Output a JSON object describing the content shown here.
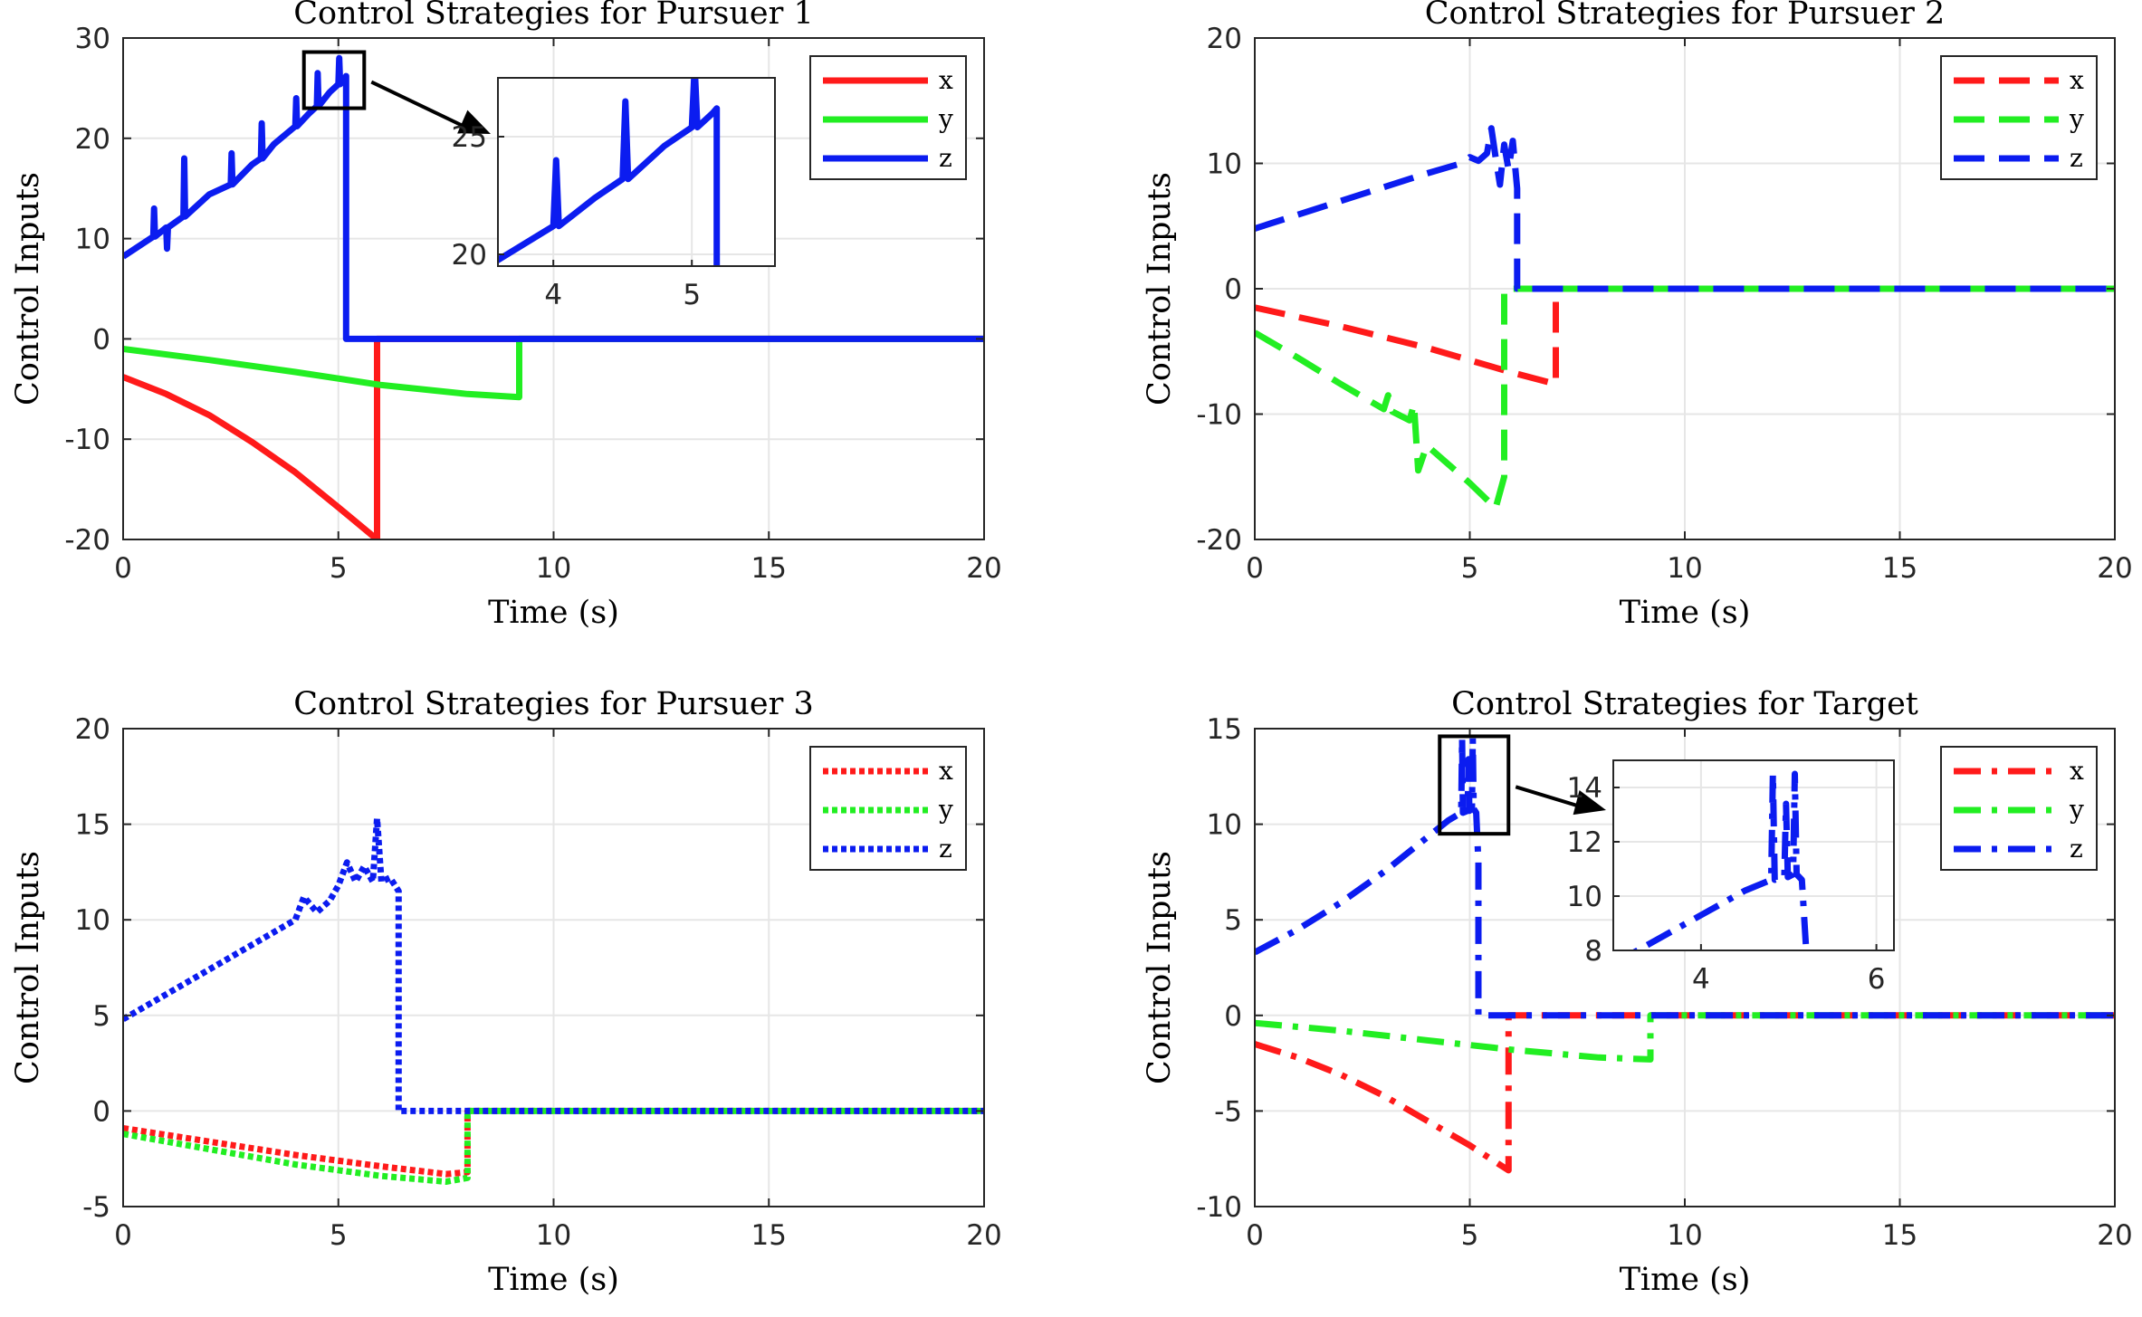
{
  "chart_data": [
    {
      "type": "line",
      "title": "Control Strategies for Pursuer 1",
      "xlabel": "Time (s)",
      "ylabel": "Control Inputs",
      "xlim": [
        0,
        20
      ],
      "ylim": [
        -20,
        30
      ],
      "xticks": [
        0,
        5,
        10,
        15,
        20
      ],
      "yticks": [
        -20,
        -10,
        0,
        10,
        20,
        30
      ],
      "grid": true,
      "line_style": "solid",
      "legend_position": "top-right",
      "series": [
        {
          "name": "x",
          "color": "#ff1a1a",
          "x": [
            0,
            1,
            2,
            3,
            4,
            5,
            5.9,
            5.9,
            20
          ],
          "y": [
            -3.8,
            -5.5,
            -7.6,
            -10.3,
            -13.3,
            -16.8,
            -20,
            0,
            0
          ]
        },
        {
          "name": "y",
          "color": "#22ee22",
          "x": [
            0,
            2,
            4,
            6,
            8,
            9.2,
            9.2,
            20
          ],
          "y": [
            -1,
            -2.1,
            -3.3,
            -4.6,
            -5.5,
            -5.8,
            0,
            0
          ]
        },
        {
          "name": "z",
          "color": "#0b1cf0",
          "x": [
            0,
            0.7,
            0.72,
            0.74,
            1.0,
            1.02,
            1.04,
            1.4,
            1.42,
            1.44,
            2.0,
            2.5,
            2.52,
            2.54,
            3.0,
            3.2,
            3.22,
            3.24,
            3.5,
            4.0,
            4.02,
            4.04,
            4.3,
            4.5,
            4.52,
            4.54,
            4.8,
            5.0,
            5.02,
            5.04,
            5.15,
            5.18,
            5.18,
            20
          ],
          "y": [
            8.2,
            10.2,
            13,
            10.2,
            11.1,
            9,
            11.1,
            12.2,
            18,
            12.2,
            14.4,
            15.4,
            18.5,
            15.4,
            17.4,
            18,
            21.5,
            18,
            19.4,
            21.2,
            24,
            21.2,
            22.4,
            23.2,
            26.5,
            23.2,
            24.6,
            25.4,
            28,
            25.4,
            26,
            26.2,
            0,
            0
          ]
        }
      ],
      "inset": {
        "xlim": [
          3.6,
          5.6
        ],
        "ylim": [
          19.5,
          27.5
        ],
        "xticks": [
          4,
          5
        ],
        "yticks": [
          20,
          25
        ],
        "source_box": {
          "x": [
            4.2,
            5.6
          ],
          "y": [
            23,
            28.6
          ]
        }
      }
    },
    {
      "type": "line",
      "title": "Control Strategies for Pursuer 2",
      "xlabel": "Time (s)",
      "ylabel": "Control Inputs",
      "xlim": [
        0,
        20
      ],
      "ylim": [
        -20,
        20
      ],
      "xticks": [
        0,
        5,
        10,
        15,
        20
      ],
      "yticks": [
        -20,
        -10,
        0,
        10,
        20
      ],
      "grid": true,
      "line_style": "dashed",
      "legend_position": "top-right",
      "series": [
        {
          "name": "x",
          "color": "#ff1a1a",
          "x": [
            0,
            2,
            4,
            6,
            7.0,
            7.0,
            20
          ],
          "y": [
            -1.5,
            -3,
            -4.7,
            -6.7,
            -7.6,
            0,
            0
          ]
        },
        {
          "name": "y",
          "color": "#22ee22",
          "x": [
            0,
            1,
            2,
            3,
            3.1,
            3.2,
            3.6,
            3.7,
            3.8,
            4,
            5,
            5.6,
            5.8,
            5.8,
            6.0,
            20
          ],
          "y": [
            -3.5,
            -5.5,
            -7.6,
            -9.6,
            -8.5,
            -9.8,
            -10.5,
            -9.2,
            -14.5,
            -12.5,
            -15.5,
            -17.5,
            -15,
            0,
            0,
            0
          ]
        },
        {
          "name": "z",
          "color": "#0b1cf0",
          "x": [
            0,
            2,
            4,
            4.8,
            5.0,
            5.2,
            5.4,
            5.5,
            5.6,
            5.7,
            5.8,
            5.9,
            6.0,
            6.1,
            6.1,
            20
          ],
          "y": [
            4.8,
            7,
            9.2,
            10,
            10.5,
            10.2,
            10.8,
            12.8,
            10.5,
            8.3,
            11.5,
            9.5,
            11.8,
            8,
            0,
            0
          ]
        }
      ]
    },
    {
      "type": "line",
      "title": "Control Strategies for Pursuer 3",
      "xlabel": "Time (s)",
      "ylabel": "Control Inputs",
      "xlim": [
        0,
        20
      ],
      "ylim": [
        -5,
        20
      ],
      "xticks": [
        0,
        5,
        10,
        15,
        20
      ],
      "yticks": [
        -5,
        0,
        5,
        10,
        15,
        20
      ],
      "grid": true,
      "line_style": "dotted",
      "legend_position": "top-right",
      "series": [
        {
          "name": "x",
          "color": "#ff1a1a",
          "x": [
            0,
            2,
            4,
            6,
            7.5,
            8.0,
            8.0,
            20
          ],
          "y": [
            -0.9,
            -1.6,
            -2.3,
            -2.9,
            -3.3,
            -3.2,
            0,
            0
          ]
        },
        {
          "name": "y",
          "color": "#22ee22",
          "x": [
            0,
            2,
            4,
            6,
            7.5,
            8.0,
            8.0,
            20
          ],
          "y": [
            -1.2,
            -2.0,
            -2.8,
            -3.4,
            -3.7,
            -3.5,
            0,
            0
          ]
        },
        {
          "name": "z",
          "color": "#0b1cf0",
          "x": [
            0,
            2,
            4,
            4.2,
            4.5,
            4.8,
            5.0,
            5.2,
            5.4,
            5.6,
            5.8,
            5.9,
            6.0,
            6.2,
            6.4,
            6.4,
            20
          ],
          "y": [
            4.8,
            7.4,
            10,
            11.2,
            10.4,
            11,
            11.8,
            13,
            12,
            12.8,
            12,
            15.3,
            12,
            12.2,
            11.5,
            0,
            0
          ]
        }
      ]
    },
    {
      "type": "line",
      "title": "Control Strategies for Target",
      "xlabel": "Time (s)",
      "ylabel": "Control Inputs",
      "xlim": [
        0,
        20
      ],
      "ylim": [
        -10,
        15
      ],
      "xticks": [
        0,
        5,
        10,
        15,
        20
      ],
      "yticks": [
        -10,
        -5,
        0,
        5,
        10,
        15
      ],
      "grid": true,
      "line_style": "dashdot",
      "legend_position": "top-right",
      "series": [
        {
          "name": "x",
          "color": "#ff1a1a",
          "x": [
            0,
            1,
            2,
            3,
            4,
            5,
            5.9,
            5.9,
            20
          ],
          "y": [
            -1.5,
            -2.2,
            -3.1,
            -4.2,
            -5.5,
            -6.8,
            -8.1,
            0,
            0
          ]
        },
        {
          "name": "y",
          "color": "#22ee22",
          "x": [
            0,
            2,
            4,
            6,
            8,
            9.2,
            9.2,
            20
          ],
          "y": [
            -0.4,
            -0.8,
            -1.3,
            -1.8,
            -2.2,
            -2.3,
            0,
            0
          ]
        },
        {
          "name": "z",
          "color": "#0b1cf0",
          "x": [
            0,
            1,
            2,
            3,
            4,
            4.5,
            4.8,
            4.82,
            4.84,
            4.95,
            4.97,
            4.99,
            5.05,
            5.07,
            5.09,
            5.15,
            5.2,
            5.2,
            20
          ],
          "y": [
            3.3,
            4.5,
            5.9,
            7.5,
            9.3,
            10.2,
            10.6,
            14.5,
            10.6,
            10.7,
            13.4,
            10.7,
            10.8,
            14.5,
            10.8,
            10.6,
            8,
            0,
            0
          ]
        }
      ],
      "inset": {
        "xlim": [
          3.0,
          6.2
        ],
        "ylim": [
          8,
          15
        ],
        "xticks": [
          4,
          6
        ],
        "yticks": [
          8,
          10,
          12,
          14
        ],
        "source_box": {
          "x": [
            4.3,
            5.9
          ],
          "y": [
            9.5,
            14.6
          ]
        }
      }
    }
  ]
}
